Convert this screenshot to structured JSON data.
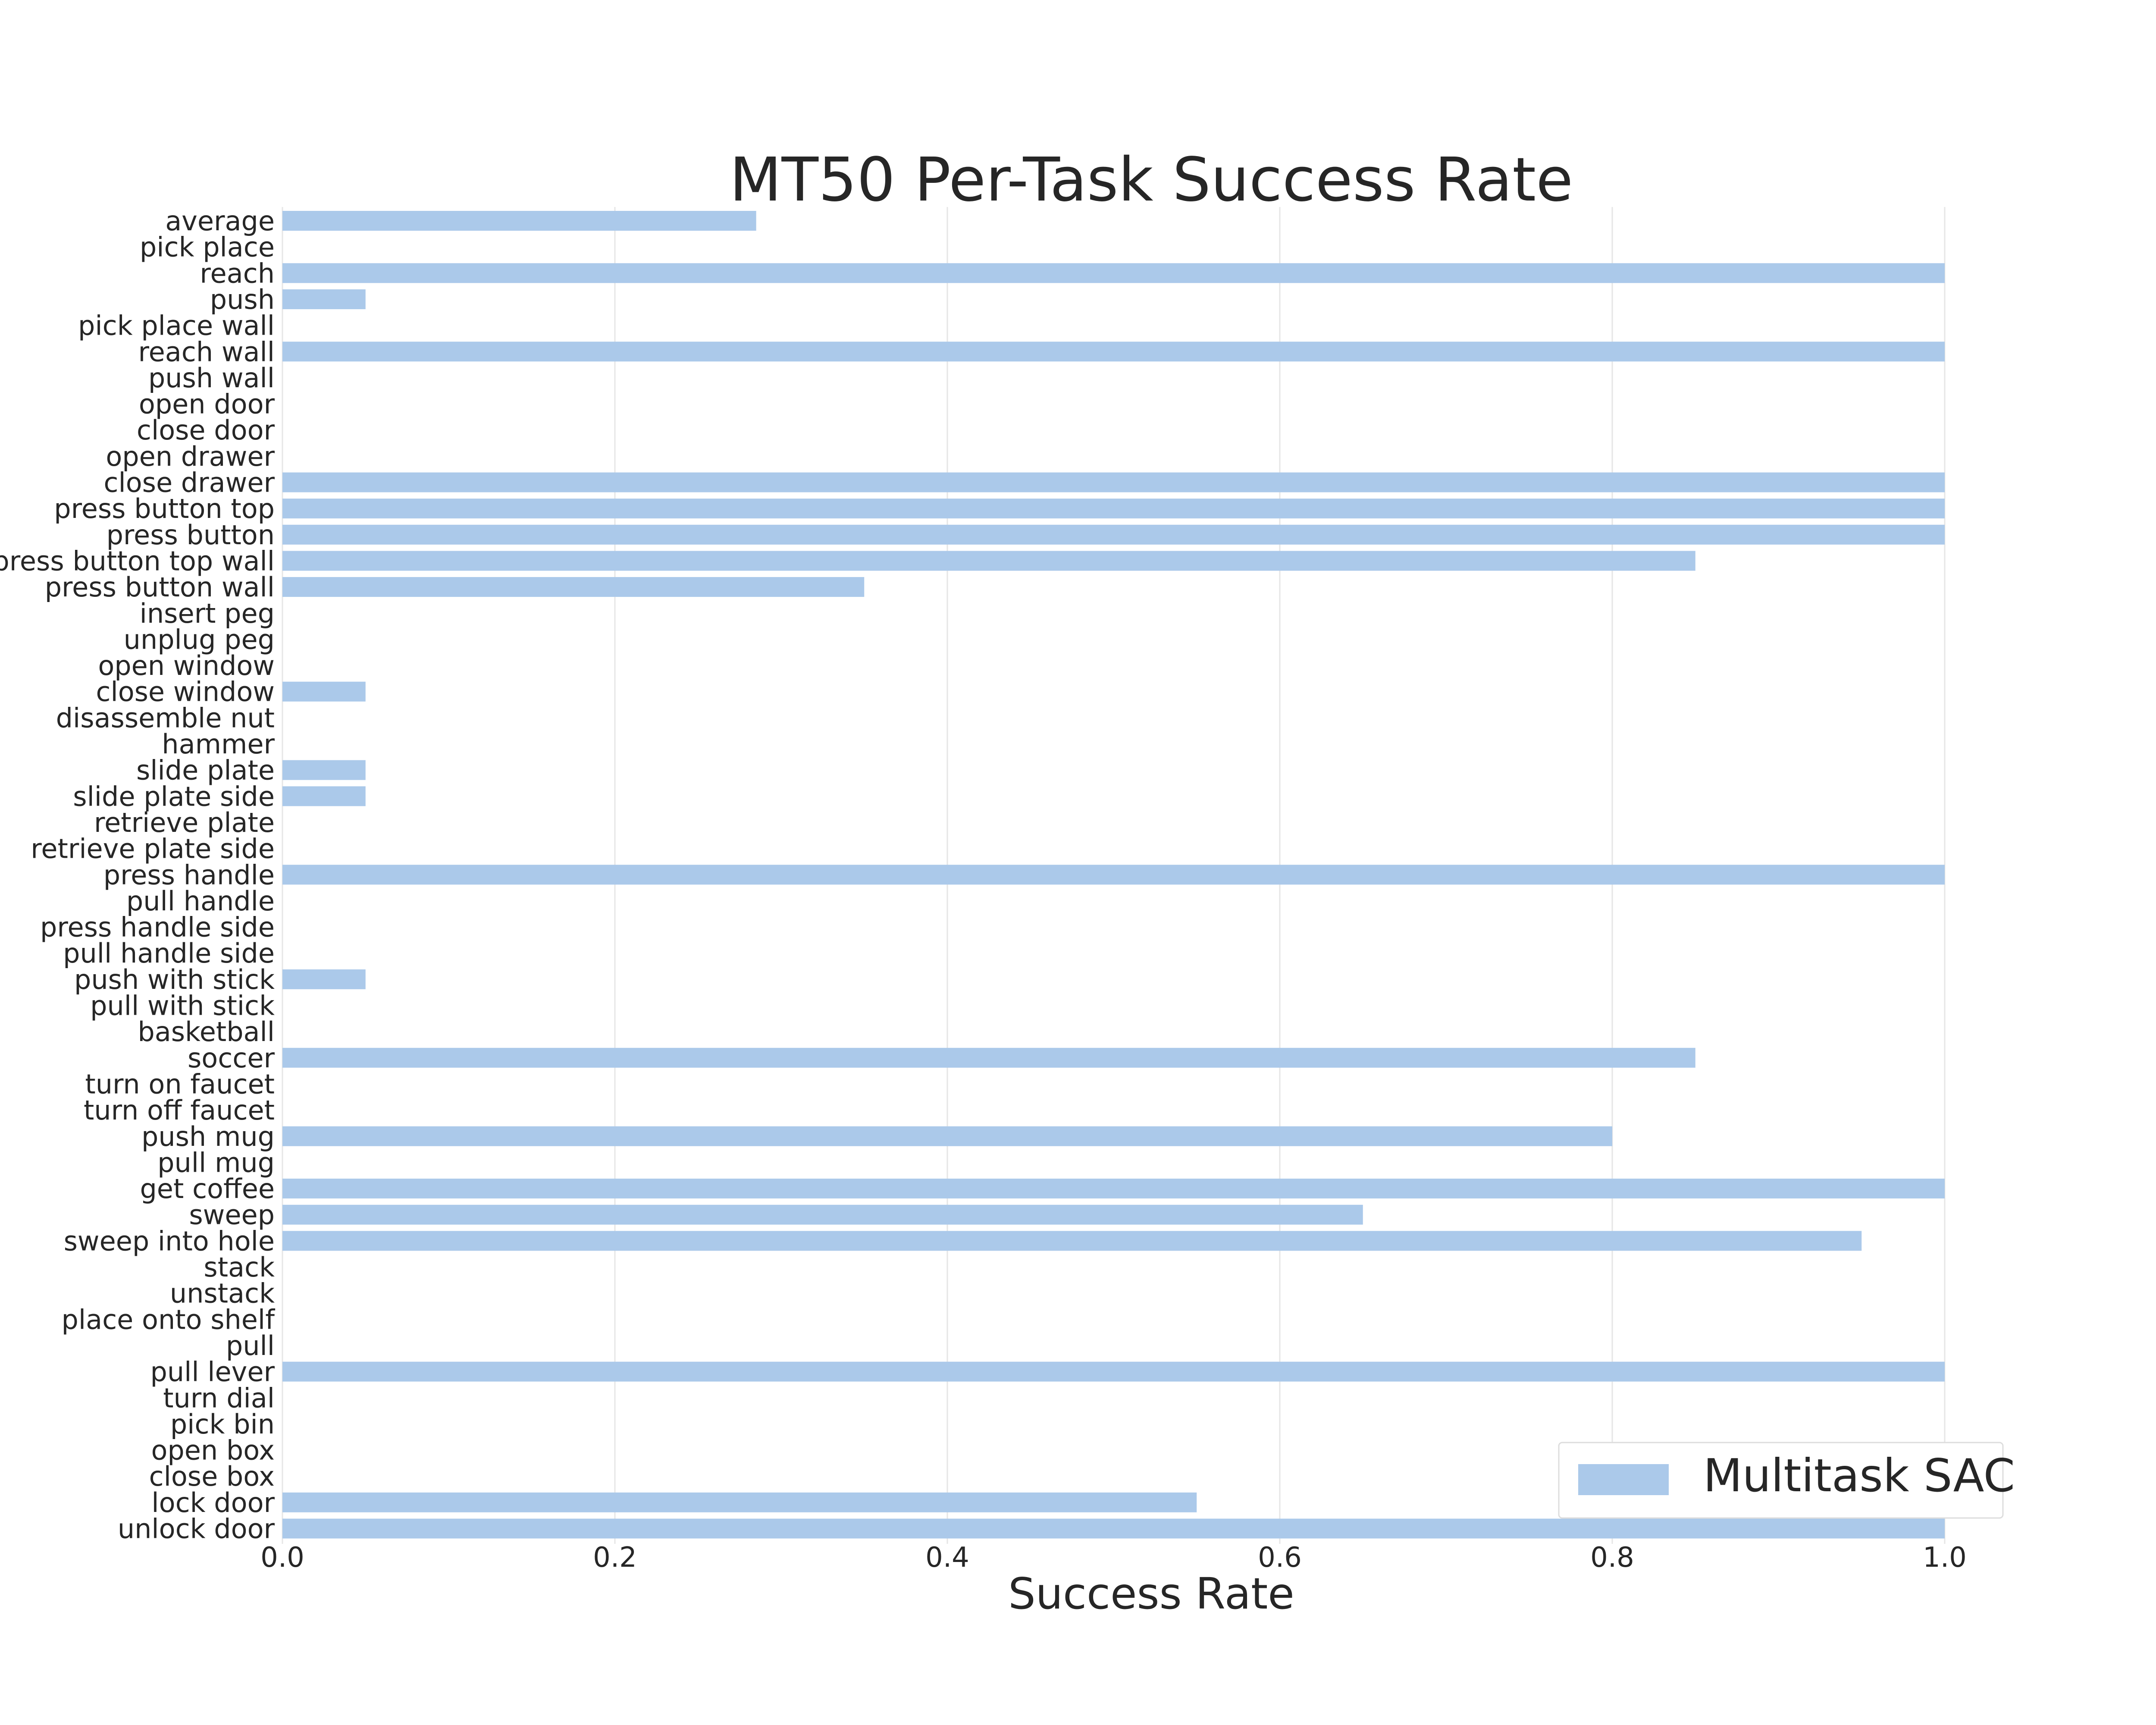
{
  "chart_data": {
    "type": "bar",
    "orientation": "horizontal",
    "title": "MT50 Per-Task Success Rate",
    "xlabel": "Success Rate",
    "ylabel": "",
    "xlim": [
      0.0,
      1.0
    ],
    "xticks": [
      "0.0",
      "0.2",
      "0.4",
      "0.6",
      "0.8",
      "1.0"
    ],
    "grid": true,
    "legend_position": "bottom-right",
    "bar_color": "#abc9ea",
    "categories": [
      "average",
      "pick place",
      "reach",
      "push",
      "pick place wall",
      "reach wall",
      "push wall",
      "open door",
      "close door",
      "open drawer",
      "close drawer",
      "press button top",
      "press button",
      "press button top wall",
      "press button wall",
      "insert peg",
      "unplug peg",
      "open window",
      "close window",
      "disassemble nut",
      "hammer",
      "slide plate",
      "slide plate side",
      "retrieve plate",
      "retrieve plate side",
      "press handle",
      "pull handle",
      "press handle side",
      "pull handle side",
      "push with stick",
      "pull with stick",
      "basketball",
      "soccer",
      "turn on faucet",
      "turn off faucet",
      "push mug",
      "pull mug",
      "get coffee",
      "sweep",
      "sweep into hole",
      "stack",
      "unstack",
      "place onto shelf",
      "pull",
      "pull lever",
      "turn dial",
      "pick bin",
      "open box",
      "close box",
      "lock door",
      "unlock door"
    ],
    "series": [
      {
        "name": "Multitask SAC",
        "values": [
          0.285,
          0.0,
          1.0,
          0.05,
          0.0,
          1.0,
          0.0,
          0.0,
          0.0,
          0.0,
          1.0,
          1.0,
          1.0,
          0.85,
          0.35,
          0.0,
          0.0,
          0.0,
          0.05,
          0.0,
          0.0,
          0.05,
          0.05,
          0.0,
          0.0,
          1.0,
          0.0,
          0.0,
          0.0,
          0.05,
          0.0,
          0.0,
          0.85,
          0.0,
          0.0,
          0.8,
          0.0,
          1.0,
          0.65,
          0.95,
          0.0,
          0.0,
          0.0,
          0.0,
          1.0,
          0.0,
          0.0,
          0.0,
          0.0,
          0.55,
          1.0
        ]
      }
    ]
  }
}
